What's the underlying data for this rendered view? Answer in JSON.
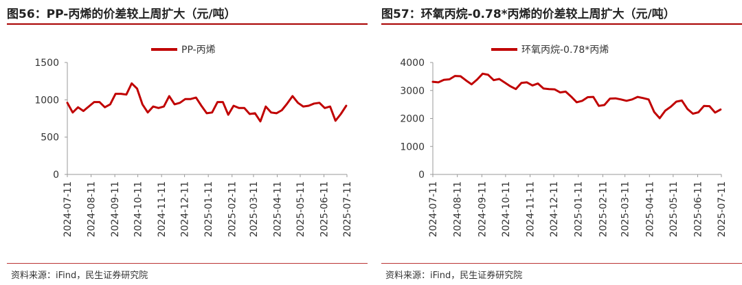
{
  "panels": [
    {
      "title": "图56：PP-丙烯的价差较上周扩大（元/吨）",
      "source": "资料来源：iFind，民生证券研究院"
    },
    {
      "title": "图57：环氧丙烷-0.78*丙烯的价差较上周扩大（元/吨）",
      "source": "资料来源：iFind，民生证券研究院"
    }
  ],
  "chart_data": [
    {
      "type": "line",
      "legend_position": "top",
      "ylim": [
        0,
        1500
      ],
      "yticks": [
        0,
        500,
        1000,
        1500
      ],
      "grid": false,
      "xlim": [
        "2024-07-11",
        "2025-07-11"
      ],
      "xtick_labels": [
        "2024-07-11",
        "2024-08-11",
        "2024-09-11",
        "2024-10-11",
        "2024-11-11",
        "2024-12-11",
        "2025-01-11",
        "2025-02-11",
        "2025-03-11",
        "2025-04-11",
        "2025-05-11",
        "2025-06-11",
        "2025-07-11"
      ],
      "series": [
        {
          "name": "PP-丙烯",
          "color": "#c00000",
          "x": [
            "2024-07-11",
            "2024-07-18",
            "2024-07-25",
            "2024-08-01",
            "2024-08-08",
            "2024-08-15",
            "2024-08-22",
            "2024-08-29",
            "2024-09-05",
            "2024-09-12",
            "2024-09-19",
            "2024-09-26",
            "2024-10-03",
            "2024-10-10",
            "2024-10-17",
            "2024-10-24",
            "2024-10-31",
            "2024-11-07",
            "2024-11-14",
            "2024-11-21",
            "2024-11-28",
            "2024-12-05",
            "2024-12-12",
            "2024-12-19",
            "2024-12-26",
            "2025-01-02",
            "2025-01-09",
            "2025-01-16",
            "2025-01-23",
            "2025-01-30",
            "2025-02-06",
            "2025-02-13",
            "2025-02-20",
            "2025-02-27",
            "2025-03-06",
            "2025-03-13",
            "2025-03-20",
            "2025-03-27",
            "2025-04-03",
            "2025-04-10",
            "2025-04-17",
            "2025-04-24",
            "2025-05-01",
            "2025-05-08",
            "2025-05-15",
            "2025-05-22",
            "2025-05-29",
            "2025-06-05",
            "2025-06-12",
            "2025-06-19",
            "2025-06-26",
            "2025-07-03",
            "2025-07-10"
          ],
          "values": [
            960,
            830,
            900,
            850,
            910,
            970,
            970,
            900,
            940,
            1080,
            1080,
            1070,
            1220,
            1150,
            940,
            830,
            910,
            890,
            910,
            1050,
            940,
            960,
            1010,
            1010,
            1030,
            920,
            820,
            830,
            970,
            970,
            800,
            920,
            890,
            890,
            810,
            820,
            710,
            910,
            830,
            820,
            860,
            950,
            1050,
            960,
            910,
            920,
            950,
            960,
            890,
            910,
            720,
            810,
            920
          ]
        }
      ]
    },
    {
      "type": "line",
      "legend_position": "top",
      "ylim": [
        0,
        4000
      ],
      "yticks": [
        0,
        1000,
        2000,
        3000,
        4000
      ],
      "grid": false,
      "xlim": [
        "2024-07-11",
        "2025-07-11"
      ],
      "xtick_labels": [
        "2024-07-11",
        "2024-08-11",
        "2024-09-11",
        "2024-10-11",
        "2024-11-11",
        "2024-12-11",
        "2025-01-11",
        "2025-02-11",
        "2025-03-11",
        "2025-04-11",
        "2025-05-11",
        "2025-06-11",
        "2025-07-11"
      ],
      "series": [
        {
          "name": "环氧丙烷-0.78*丙烯",
          "color": "#c00000",
          "x": [
            "2024-07-11",
            "2024-07-18",
            "2024-07-25",
            "2024-08-01",
            "2024-08-08",
            "2024-08-15",
            "2024-08-22",
            "2024-08-29",
            "2024-09-05",
            "2024-09-12",
            "2024-09-19",
            "2024-09-26",
            "2024-10-03",
            "2024-10-10",
            "2024-10-17",
            "2024-10-24",
            "2024-10-31",
            "2024-11-07",
            "2024-11-14",
            "2024-11-21",
            "2024-11-28",
            "2024-12-05",
            "2024-12-12",
            "2024-12-19",
            "2024-12-26",
            "2025-01-02",
            "2025-01-09",
            "2025-01-16",
            "2025-01-23",
            "2025-01-30",
            "2025-02-06",
            "2025-02-13",
            "2025-02-20",
            "2025-02-27",
            "2025-03-06",
            "2025-03-13",
            "2025-03-20",
            "2025-03-27",
            "2025-04-03",
            "2025-04-10",
            "2025-04-17",
            "2025-04-24",
            "2025-05-01",
            "2025-05-08",
            "2025-05-15",
            "2025-05-22",
            "2025-05-29",
            "2025-06-05",
            "2025-06-12",
            "2025-06-19",
            "2025-06-26",
            "2025-07-03",
            "2025-07-10"
          ],
          "values": [
            3310,
            3290,
            3380,
            3400,
            3520,
            3510,
            3360,
            3220,
            3390,
            3600,
            3560,
            3370,
            3410,
            3280,
            3150,
            3050,
            3270,
            3290,
            3180,
            3250,
            3070,
            3050,
            3040,
            2930,
            2960,
            2780,
            2580,
            2630,
            2760,
            2770,
            2450,
            2480,
            2710,
            2720,
            2680,
            2630,
            2680,
            2770,
            2730,
            2680,
            2230,
            2010,
            2280,
            2420,
            2600,
            2640,
            2340,
            2170,
            2220,
            2450,
            2440,
            2210,
            2320
          ]
        }
      ]
    }
  ]
}
